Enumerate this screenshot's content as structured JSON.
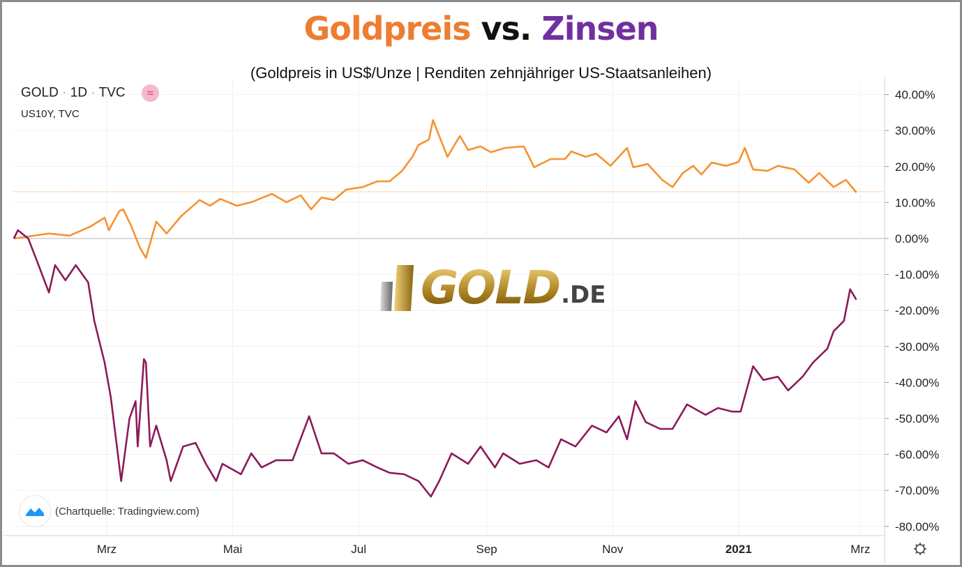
{
  "title": {
    "part1": "Goldpreis",
    "part2": "vs.",
    "part3": "Zinsen",
    "color1": "#ED7D31",
    "color2": "#111111",
    "color3": "#7030A0"
  },
  "subtitle": "(Goldpreis in US$/Unze | Renditen zehnjähriger US-Staatsanleihen)",
  "legend": {
    "symbol": "GOLD",
    "interval": "1D",
    "exchange": "TVC",
    "compare": "US10Y, TVC",
    "compare_icon": "approx-icon"
  },
  "credit": "(Chartquelle: Tradingview.com)",
  "watermark": {
    "main": "GOLD",
    "suffix": ".DE"
  },
  "chart_data": {
    "type": "line",
    "ylim": [
      -80,
      40
    ],
    "y_ticks": [
      "40.00%",
      "30.00%",
      "20.00%",
      "10.00%",
      "0.00%",
      "-10.00%",
      "-20.00%",
      "-30.00%",
      "-40.00%",
      "-50.00%",
      "-60.00%",
      "-70.00%",
      "-80.00%"
    ],
    "y_tick_values": [
      40,
      30,
      20,
      10,
      0,
      -10,
      -20,
      -30,
      -40,
      -50,
      -60,
      -70,
      -80
    ],
    "x_ticks": [
      {
        "label": "Mrz",
        "date": "2020-03-01"
      },
      {
        "label": "Mai",
        "date": "2020-05-01"
      },
      {
        "label": "Jul",
        "date": "2020-07-01"
      },
      {
        "label": "Sep",
        "date": "2020-09-01"
      },
      {
        "label": "Nov",
        "date": "2020-11-01"
      },
      {
        "label": "2021",
        "date": "2021-01-01"
      },
      {
        "label": "Mrz",
        "date": "2021-03-01"
      }
    ],
    "xlim": [
      "2020-01-16",
      "2021-03-10"
    ],
    "grid": true,
    "last_value_line": 13,
    "series": [
      {
        "name": "GOLD",
        "color": "#F5922F",
        "points": [
          [
            "2020-01-16",
            0
          ],
          [
            "2020-02-02",
            1.4
          ],
          [
            "2020-02-12",
            0.8
          ],
          [
            "2020-02-22",
            3.3
          ],
          [
            "2020-02-29",
            5.8
          ],
          [
            "2020-03-02",
            2.3
          ],
          [
            "2020-03-07",
            7.6
          ],
          [
            "2020-03-09",
            8.1
          ],
          [
            "2020-03-13",
            3.3
          ],
          [
            "2020-03-17",
            -2.5
          ],
          [
            "2020-03-20",
            -5.4
          ],
          [
            "2020-03-25",
            4.7
          ],
          [
            "2020-03-30",
            1.4
          ],
          [
            "2020-04-06",
            6.2
          ],
          [
            "2020-04-15",
            10.7
          ],
          [
            "2020-04-20",
            9.1
          ],
          [
            "2020-04-25",
            11
          ],
          [
            "2020-05-03",
            9.1
          ],
          [
            "2020-05-10",
            10.1
          ],
          [
            "2020-05-20",
            12.4
          ],
          [
            "2020-05-27",
            10.1
          ],
          [
            "2020-06-03",
            12
          ],
          [
            "2020-06-08",
            8.1
          ],
          [
            "2020-06-13",
            11.4
          ],
          [
            "2020-06-19",
            10.7
          ],
          [
            "2020-06-25",
            13.6
          ],
          [
            "2020-07-03",
            14.3
          ],
          [
            "2020-07-10",
            15.9
          ],
          [
            "2020-07-16",
            15.9
          ],
          [
            "2020-07-22",
            18.8
          ],
          [
            "2020-07-27",
            22.7
          ],
          [
            "2020-07-30",
            26
          ],
          [
            "2020-08-04",
            27.5
          ],
          [
            "2020-08-06",
            32.9
          ],
          [
            "2020-08-13",
            22.7
          ],
          [
            "2020-08-19",
            28.5
          ],
          [
            "2020-08-23",
            24.6
          ],
          [
            "2020-08-29",
            25.6
          ],
          [
            "2020-09-03",
            24
          ],
          [
            "2020-09-10",
            25.2
          ],
          [
            "2020-09-19",
            25.6
          ],
          [
            "2020-09-24",
            19.8
          ],
          [
            "2020-10-02",
            22.1
          ],
          [
            "2020-10-09",
            22.1
          ],
          [
            "2020-10-12",
            24.2
          ],
          [
            "2020-10-19",
            22.7
          ],
          [
            "2020-10-24",
            23.6
          ],
          [
            "2020-10-31",
            20.2
          ],
          [
            "2020-11-08",
            25.2
          ],
          [
            "2020-11-11",
            19.8
          ],
          [
            "2020-11-18",
            20.7
          ],
          [
            "2020-11-25",
            16.3
          ],
          [
            "2020-11-30",
            14.3
          ],
          [
            "2020-12-05",
            18.2
          ],
          [
            "2020-12-10",
            20.2
          ],
          [
            "2020-12-14",
            17.8
          ],
          [
            "2020-12-19",
            21.1
          ],
          [
            "2020-12-26",
            20.2
          ],
          [
            "2021-01-01",
            21.3
          ],
          [
            "2021-01-04",
            25.2
          ],
          [
            "2021-01-08",
            19.2
          ],
          [
            "2021-01-15",
            18.8
          ],
          [
            "2021-01-20",
            20.2
          ],
          [
            "2021-01-28",
            19.2
          ],
          [
            "2021-02-04",
            15.5
          ],
          [
            "2021-02-09",
            18.2
          ],
          [
            "2021-02-16",
            14.3
          ],
          [
            "2021-02-22",
            16.3
          ],
          [
            "2021-02-27",
            12.8
          ]
        ]
      },
      {
        "name": "US10Y",
        "color": "#8B1A5A",
        "points": [
          [
            "2020-01-16",
            0
          ],
          [
            "2020-01-18",
            2.3
          ],
          [
            "2020-01-23",
            0
          ],
          [
            "2020-01-28",
            -7.4
          ],
          [
            "2020-02-02",
            -15
          ],
          [
            "2020-02-05",
            -7.4
          ],
          [
            "2020-02-10",
            -11.6
          ],
          [
            "2020-02-15",
            -7.4
          ],
          [
            "2020-02-21",
            -12.2
          ],
          [
            "2020-02-24",
            -22.9
          ],
          [
            "2020-02-29",
            -34.5
          ],
          [
            "2020-03-03",
            -44.2
          ],
          [
            "2020-03-08",
            -67.4
          ],
          [
            "2020-03-12",
            -50
          ],
          [
            "2020-03-15",
            -45.2
          ],
          [
            "2020-03-16",
            -57.8
          ],
          [
            "2020-03-19",
            -33.5
          ],
          [
            "2020-03-20",
            -34.5
          ],
          [
            "2020-03-22",
            -57.8
          ],
          [
            "2020-03-25",
            -52
          ],
          [
            "2020-03-30",
            -61.6
          ],
          [
            "2020-04-01",
            -67.4
          ],
          [
            "2020-04-07",
            -57.8
          ],
          [
            "2020-04-13",
            -56.8
          ],
          [
            "2020-04-18",
            -62.6
          ],
          [
            "2020-04-23",
            -67.4
          ],
          [
            "2020-04-26",
            -62.6
          ],
          [
            "2020-05-05",
            -65.5
          ],
          [
            "2020-05-10",
            -59.7
          ],
          [
            "2020-05-15",
            -63.6
          ],
          [
            "2020-05-22",
            -61.6
          ],
          [
            "2020-05-30",
            -61.6
          ],
          [
            "2020-06-07",
            -49.4
          ],
          [
            "2020-06-13",
            -59.7
          ],
          [
            "2020-06-19",
            -59.7
          ],
          [
            "2020-06-26",
            -62.6
          ],
          [
            "2020-07-03",
            -61.6
          ],
          [
            "2020-07-10",
            -63.6
          ],
          [
            "2020-07-16",
            -65.1
          ],
          [
            "2020-07-23",
            -65.5
          ],
          [
            "2020-07-30",
            -67.4
          ],
          [
            "2020-08-05",
            -71.7
          ],
          [
            "2020-08-09",
            -67.4
          ],
          [
            "2020-08-15",
            -59.7
          ],
          [
            "2020-08-23",
            -62.6
          ],
          [
            "2020-08-29",
            -57.8
          ],
          [
            "2020-09-05",
            -63.6
          ],
          [
            "2020-09-09",
            -59.7
          ],
          [
            "2020-09-17",
            -62.6
          ],
          [
            "2020-09-25",
            -61.6
          ],
          [
            "2020-10-01",
            -63.6
          ],
          [
            "2020-10-07",
            -55.8
          ],
          [
            "2020-10-14",
            -57.8
          ],
          [
            "2020-10-22",
            -52
          ],
          [
            "2020-10-29",
            -53.9
          ],
          [
            "2020-11-04",
            -49.4
          ],
          [
            "2020-11-08",
            -55.8
          ],
          [
            "2020-11-12",
            -45.2
          ],
          [
            "2020-11-17",
            -51
          ],
          [
            "2020-11-24",
            -52.9
          ],
          [
            "2020-11-30",
            -52.9
          ],
          [
            "2020-12-07",
            -46.1
          ],
          [
            "2020-12-16",
            -49
          ],
          [
            "2020-12-22",
            -47.1
          ],
          [
            "2020-12-29",
            -48.1
          ],
          [
            "2021-01-02",
            -48.1
          ],
          [
            "2021-01-08",
            -35.5
          ],
          [
            "2021-01-13",
            -39.3
          ],
          [
            "2021-01-20",
            -38.4
          ],
          [
            "2021-01-25",
            -42.2
          ],
          [
            "2021-02-01",
            -38.4
          ],
          [
            "2021-02-06",
            -34.5
          ],
          [
            "2021-02-13",
            -30.6
          ],
          [
            "2021-02-16",
            -25.8
          ],
          [
            "2021-02-21",
            -22.9
          ],
          [
            "2021-02-24",
            -14.1
          ],
          [
            "2021-02-27",
            -17
          ]
        ]
      }
    ]
  }
}
